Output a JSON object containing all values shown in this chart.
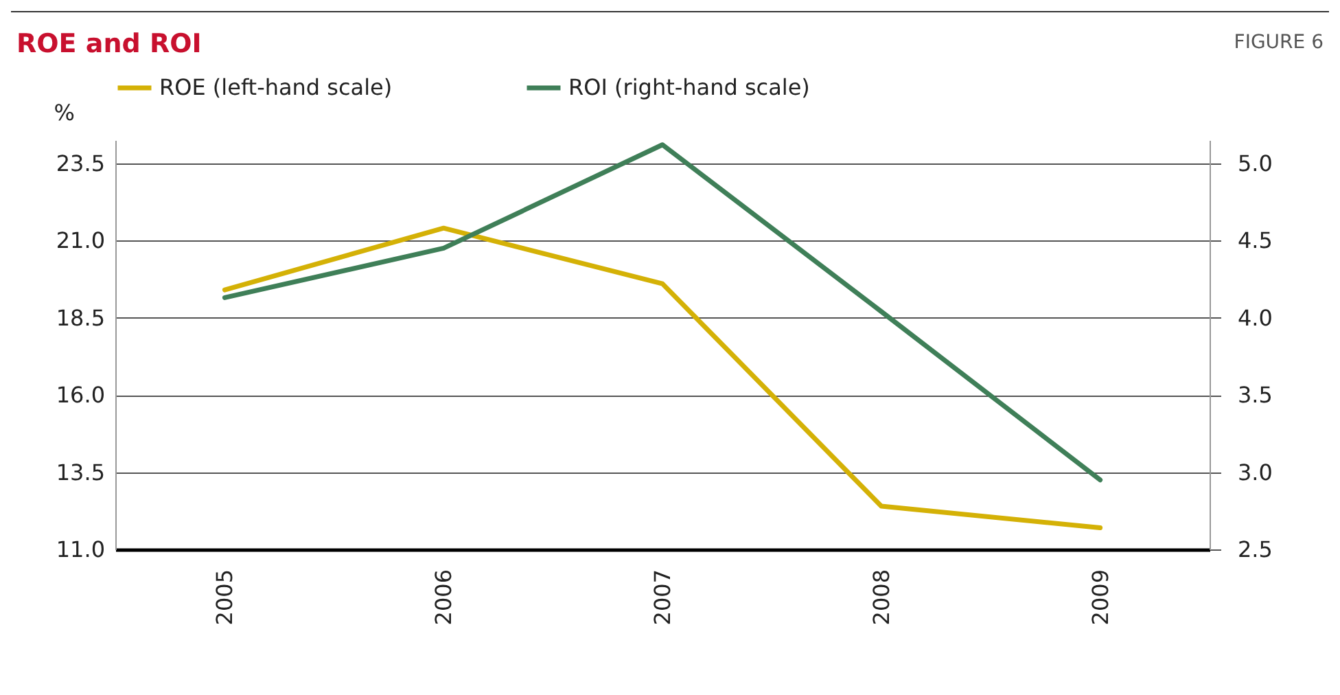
{
  "chart_data": {
    "type": "line",
    "title": "ROE and ROI",
    "ylabel": "%",
    "annotations": [
      "FIGURE 6"
    ],
    "categories": [
      "2005",
      "2006",
      "2007",
      "2008",
      "2009"
    ],
    "series": [
      {
        "name": "ROE (left-hand scale)",
        "color": "#d4b106",
        "values": [
          19.4,
          21.4,
          19.6,
          12.4,
          11.7
        ]
      },
      {
        "name": "ROI (right-hand scale)",
        "color": "#3f7f58",
        "axis": "y2",
        "values": [
          4.13,
          4.45,
          5.12,
          4.04,
          2.95
        ]
      }
    ],
    "ylim": [
      11,
      24.25
    ],
    "yticks": [
      {
        "value": 11,
        "label": "11.0"
      },
      13.5,
      {
        "value": 16,
        "label": "16.0"
      },
      18.5,
      {
        "value": 21,
        "label": "21.0"
      },
      23.5
    ],
    "y2lim": [
      2.5,
      5.15
    ],
    "y2ticks": [
      2.5,
      {
        "value": 3,
        "label": "3.0"
      },
      3.5,
      {
        "value": 4,
        "label": "4.0"
      },
      4.5,
      {
        "value": 5,
        "label": "5.0"
      }
    ],
    "grid": "y",
    "legend": "top"
  }
}
